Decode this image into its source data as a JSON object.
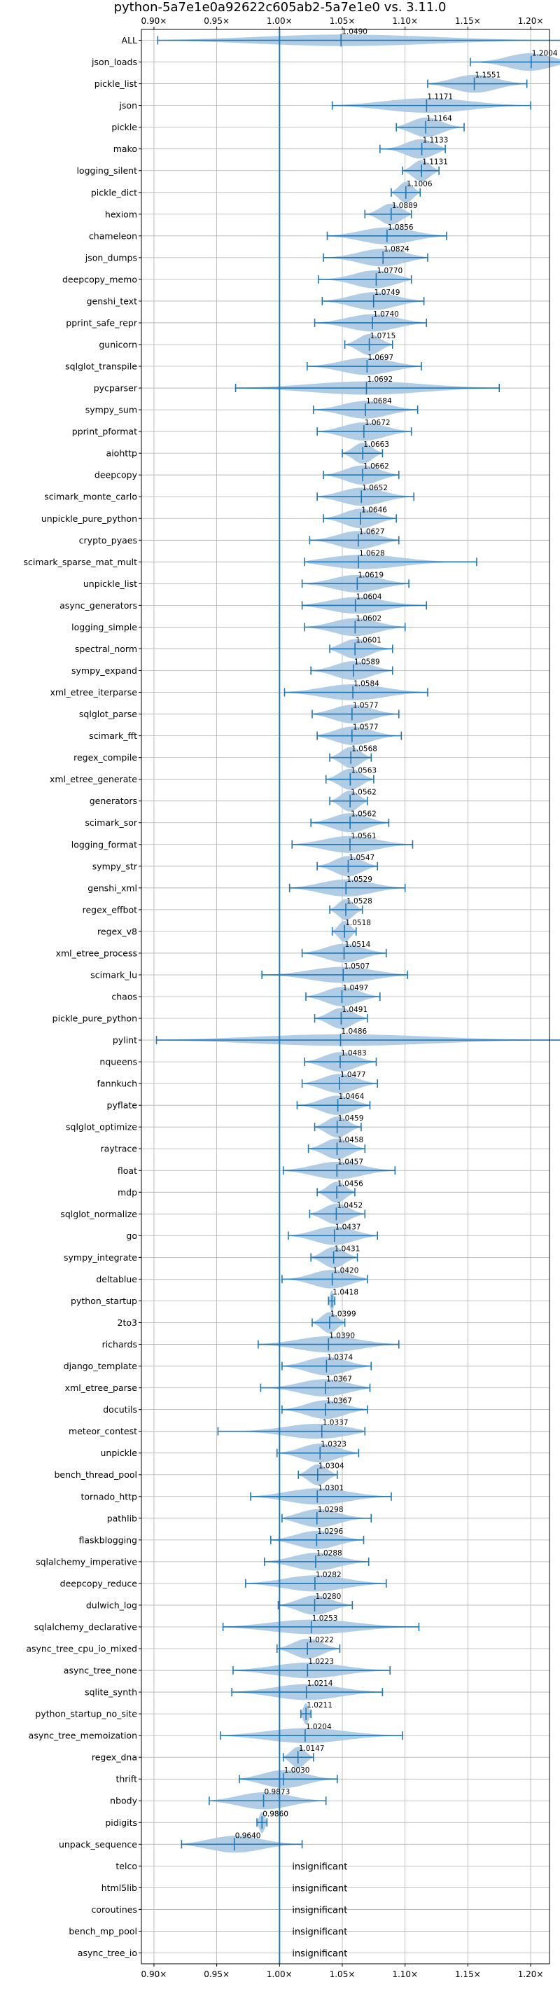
{
  "chart_data": {
    "type": "violin",
    "title": "python-5a7e1e0a92622c605ab2-5a7e1e0 vs. 3.11.0",
    "xlim": [
      0.89,
      1.215
    ],
    "xticks": [
      0.9,
      0.95,
      1.0,
      1.05,
      1.1,
      1.15,
      1.2
    ],
    "xtick_labels": [
      "0.90×",
      "0.95×",
      "1.00×",
      "1.05×",
      "1.10×",
      "1.15×",
      "1.20×"
    ],
    "reference_x": 1.0,
    "grid": true,
    "colors": {
      "violin": "#a9c8e3",
      "stats": "#1f77b4",
      "axis": "#000000",
      "grid": "#b0b0b0"
    },
    "insignificant_label": "insignificant",
    "benchmarks": [
      {
        "name": "ALL",
        "value": 1.049,
        "label": "1.0490",
        "min": 0.903,
        "max": 1.232
      },
      {
        "name": "json_loads",
        "value": 1.2004,
        "label": "1.2004",
        "min": 1.152,
        "max": 1.232
      },
      {
        "name": "pickle_list",
        "value": 1.1551,
        "label": "1.1551",
        "min": 1.118,
        "max": 1.197
      },
      {
        "name": "json",
        "value": 1.1171,
        "label": "1.1171",
        "min": 1.042,
        "max": 1.2
      },
      {
        "name": "pickle",
        "value": 1.1164,
        "label": "1.1164",
        "min": 1.093,
        "max": 1.147
      },
      {
        "name": "mako",
        "value": 1.1133,
        "label": "1.1133",
        "min": 1.08,
        "max": 1.132
      },
      {
        "name": "logging_silent",
        "value": 1.1131,
        "label": "1.1131",
        "min": 1.098,
        "max": 1.127
      },
      {
        "name": "pickle_dict",
        "value": 1.1006,
        "label": "1.1006",
        "min": 1.089,
        "max": 1.112
      },
      {
        "name": "hexiom",
        "value": 1.0889,
        "label": "1.0889",
        "min": 1.068,
        "max": 1.105
      },
      {
        "name": "chameleon",
        "value": 1.0856,
        "label": "1.0856",
        "min": 1.038,
        "max": 1.133
      },
      {
        "name": "json_dumps",
        "value": 1.0824,
        "label": "1.0824",
        "min": 1.035,
        "max": 1.118
      },
      {
        "name": "deepcopy_memo",
        "value": 1.077,
        "label": "1.0770",
        "min": 1.031,
        "max": 1.105
      },
      {
        "name": "genshi_text",
        "value": 1.0749,
        "label": "1.0749",
        "min": 1.034,
        "max": 1.115
      },
      {
        "name": "pprint_safe_repr",
        "value": 1.074,
        "label": "1.0740",
        "min": 1.028,
        "max": 1.117
      },
      {
        "name": "gunicorn",
        "value": 1.0715,
        "label": "1.0715",
        "min": 1.052,
        "max": 1.09
      },
      {
        "name": "sqlglot_transpile",
        "value": 1.0697,
        "label": "1.0697",
        "min": 1.022,
        "max": 1.113
      },
      {
        "name": "pycparser",
        "value": 1.0692,
        "label": "1.0692",
        "min": 0.965,
        "max": 1.175
      },
      {
        "name": "sympy_sum",
        "value": 1.0684,
        "label": "1.0684",
        "min": 1.027,
        "max": 1.11
      },
      {
        "name": "pprint_pformat",
        "value": 1.0672,
        "label": "1.0672",
        "min": 1.03,
        "max": 1.105
      },
      {
        "name": "aiohttp",
        "value": 1.0663,
        "label": "1.0663",
        "min": 1.05,
        "max": 1.082
      },
      {
        "name": "deepcopy",
        "value": 1.0662,
        "label": "1.0662",
        "min": 1.035,
        "max": 1.095
      },
      {
        "name": "scimark_monte_carlo",
        "value": 1.0652,
        "label": "1.0652",
        "min": 1.03,
        "max": 1.107
      },
      {
        "name": "unpickle_pure_python",
        "value": 1.0646,
        "label": "1.0646",
        "min": 1.035,
        "max": 1.093
      },
      {
        "name": "crypto_pyaes",
        "value": 1.0627,
        "label": "1.0627",
        "min": 1.024,
        "max": 1.095
      },
      {
        "name": "scimark_sparse_mat_mult",
        "value": 1.0628,
        "label": "1.0628",
        "min": 1.02,
        "max": 1.157
      },
      {
        "name": "unpickle_list",
        "value": 1.0619,
        "label": "1.0619",
        "min": 1.018,
        "max": 1.103
      },
      {
        "name": "async_generators",
        "value": 1.0604,
        "label": "1.0604",
        "min": 1.018,
        "max": 1.117
      },
      {
        "name": "logging_simple",
        "value": 1.0602,
        "label": "1.0602",
        "min": 1.02,
        "max": 1.1
      },
      {
        "name": "spectral_norm",
        "value": 1.0601,
        "label": "1.0601",
        "min": 1.04,
        "max": 1.09
      },
      {
        "name": "sympy_expand",
        "value": 1.0589,
        "label": "1.0589",
        "min": 1.025,
        "max": 1.09
      },
      {
        "name": "xml_etree_iterparse",
        "value": 1.0584,
        "label": "1.0584",
        "min": 1.004,
        "max": 1.118
      },
      {
        "name": "sqlglot_parse",
        "value": 1.0577,
        "label": "1.0577",
        "min": 1.026,
        "max": 1.095
      },
      {
        "name": "scimark_fft",
        "value": 1.0577,
        "label": "1.0577",
        "min": 1.03,
        "max": 1.097
      },
      {
        "name": "regex_compile",
        "value": 1.0568,
        "label": "1.0568",
        "min": 1.04,
        "max": 1.073
      },
      {
        "name": "xml_etree_generate",
        "value": 1.0563,
        "label": "1.0563",
        "min": 1.037,
        "max": 1.075
      },
      {
        "name": "generators",
        "value": 1.0562,
        "label": "1.0562",
        "min": 1.04,
        "max": 1.07
      },
      {
        "name": "scimark_sor",
        "value": 1.0562,
        "label": "1.0562",
        "min": 1.025,
        "max": 1.087
      },
      {
        "name": "logging_format",
        "value": 1.0561,
        "label": "1.0561",
        "min": 1.01,
        "max": 1.106
      },
      {
        "name": "sympy_str",
        "value": 1.0547,
        "label": "1.0547",
        "min": 1.03,
        "max": 1.078
      },
      {
        "name": "genshi_xml",
        "value": 1.0529,
        "label": "1.0529",
        "min": 1.008,
        "max": 1.1
      },
      {
        "name": "regex_effbot",
        "value": 1.0528,
        "label": "1.0528",
        "min": 1.04,
        "max": 1.066
      },
      {
        "name": "regex_v8",
        "value": 1.0518,
        "label": "1.0518",
        "min": 1.042,
        "max": 1.061
      },
      {
        "name": "xml_etree_process",
        "value": 1.0514,
        "label": "1.0514",
        "min": 1.018,
        "max": 1.085
      },
      {
        "name": "scimark_lu",
        "value": 1.0507,
        "label": "1.0507",
        "min": 0.986,
        "max": 1.102
      },
      {
        "name": "chaos",
        "value": 1.0497,
        "label": "1.0497",
        "min": 1.021,
        "max": 1.08
      },
      {
        "name": "pickle_pure_python",
        "value": 1.0491,
        "label": "1.0491",
        "min": 1.028,
        "max": 1.07
      },
      {
        "name": "pylint",
        "value": 1.0486,
        "label": "1.0486",
        "min": 0.902,
        "max": 1.228
      },
      {
        "name": "nqueens",
        "value": 1.0483,
        "label": "1.0483",
        "min": 1.02,
        "max": 1.077
      },
      {
        "name": "fannkuch",
        "value": 1.0477,
        "label": "1.0477",
        "min": 1.018,
        "max": 1.078
      },
      {
        "name": "pyflate",
        "value": 1.0464,
        "label": "1.0464",
        "min": 1.014,
        "max": 1.072
      },
      {
        "name": "sqlglot_optimize",
        "value": 1.0459,
        "label": "1.0459",
        "min": 1.028,
        "max": 1.065
      },
      {
        "name": "raytrace",
        "value": 1.0458,
        "label": "1.0458",
        "min": 1.023,
        "max": 1.068
      },
      {
        "name": "float",
        "value": 1.0457,
        "label": "1.0457",
        "min": 1.003,
        "max": 1.092
      },
      {
        "name": "mdp",
        "value": 1.0456,
        "label": "1.0456",
        "min": 1.03,
        "max": 1.06
      },
      {
        "name": "sqlglot_normalize",
        "value": 1.0452,
        "label": "1.0452",
        "min": 1.024,
        "max": 1.068
      },
      {
        "name": "go",
        "value": 1.0437,
        "label": "1.0437",
        "min": 1.007,
        "max": 1.078
      },
      {
        "name": "sympy_integrate",
        "value": 1.0431,
        "label": "1.0431",
        "min": 1.025,
        "max": 1.062
      },
      {
        "name": "deltablue",
        "value": 1.042,
        "label": "1.0420",
        "min": 1.002,
        "max": 1.07
      },
      {
        "name": "python_startup",
        "value": 1.0418,
        "label": "1.0418",
        "min": 1.039,
        "max": 1.044
      },
      {
        "name": "2to3",
        "value": 1.0399,
        "label": "1.0399",
        "min": 1.026,
        "max": 1.052
      },
      {
        "name": "richards",
        "value": 1.039,
        "label": "1.0390",
        "min": 0.983,
        "max": 1.095
      },
      {
        "name": "django_template",
        "value": 1.0374,
        "label": "1.0374",
        "min": 1.002,
        "max": 1.073
      },
      {
        "name": "xml_etree_parse",
        "value": 1.0367,
        "label": "1.0367",
        "min": 0.985,
        "max": 1.072
      },
      {
        "name": "docutils",
        "value": 1.0367,
        "label": "1.0367",
        "min": 1.002,
        "max": 1.07
      },
      {
        "name": "meteor_contest",
        "value": 1.0337,
        "label": "1.0337",
        "min": 0.951,
        "max": 1.068
      },
      {
        "name": "unpickle",
        "value": 1.0323,
        "label": "1.0323",
        "min": 0.998,
        "max": 1.063
      },
      {
        "name": "bench_thread_pool",
        "value": 1.0304,
        "label": "1.0304",
        "min": 1.015,
        "max": 1.046
      },
      {
        "name": "tornado_http",
        "value": 1.0301,
        "label": "1.0301",
        "min": 0.977,
        "max": 1.089
      },
      {
        "name": "pathlib",
        "value": 1.0298,
        "label": "1.0298",
        "min": 1.002,
        "max": 1.073
      },
      {
        "name": "flaskblogging",
        "value": 1.0296,
        "label": "1.0296",
        "min": 0.993,
        "max": 1.067
      },
      {
        "name": "sqlalchemy_imperative",
        "value": 1.0288,
        "label": "1.0288",
        "min": 0.988,
        "max": 1.071
      },
      {
        "name": "deepcopy_reduce",
        "value": 1.0282,
        "label": "1.0282",
        "min": 0.973,
        "max": 1.085
      },
      {
        "name": "dulwich_log",
        "value": 1.028,
        "label": "1.0280",
        "min": 0.999,
        "max": 1.058
      },
      {
        "name": "sqlalchemy_declarative",
        "value": 1.0253,
        "label": "1.0253",
        "min": 0.955,
        "max": 1.111
      },
      {
        "name": "async_tree_cpu_io_mixed",
        "value": 1.0222,
        "label": "1.0222",
        "min": 0.998,
        "max": 1.048
      },
      {
        "name": "async_tree_none",
        "value": 1.0223,
        "label": "1.0223",
        "min": 0.963,
        "max": 1.088
      },
      {
        "name": "sqlite_synth",
        "value": 1.0214,
        "label": "1.0214",
        "min": 0.962,
        "max": 1.082
      },
      {
        "name": "python_startup_no_site",
        "value": 1.0211,
        "label": "1.0211",
        "min": 1.017,
        "max": 1.025
      },
      {
        "name": "async_tree_memoization",
        "value": 1.0204,
        "label": "1.0204",
        "min": 0.953,
        "max": 1.098
      },
      {
        "name": "regex_dna",
        "value": 1.0147,
        "label": "1.0147",
        "min": 1.003,
        "max": 1.027
      },
      {
        "name": "thrift",
        "value": 1.003,
        "label": "1.0030",
        "min": 0.968,
        "max": 1.046
      },
      {
        "name": "nbody",
        "value": 0.9873,
        "label": "0.9873",
        "min": 0.944,
        "max": 1.037
      },
      {
        "name": "pidigits",
        "value": 0.986,
        "label": "0.9860",
        "min": 0.982,
        "max": 0.99
      },
      {
        "name": "unpack_sequence",
        "value": 0.964,
        "label": "0.9640",
        "min": 0.922,
        "max": 1.018
      },
      {
        "name": "telco",
        "insignificant": true
      },
      {
        "name": "html5lib",
        "insignificant": true
      },
      {
        "name": "coroutines",
        "insignificant": true
      },
      {
        "name": "bench_mp_pool",
        "insignificant": true
      },
      {
        "name": "async_tree_io",
        "insignificant": true
      }
    ]
  }
}
